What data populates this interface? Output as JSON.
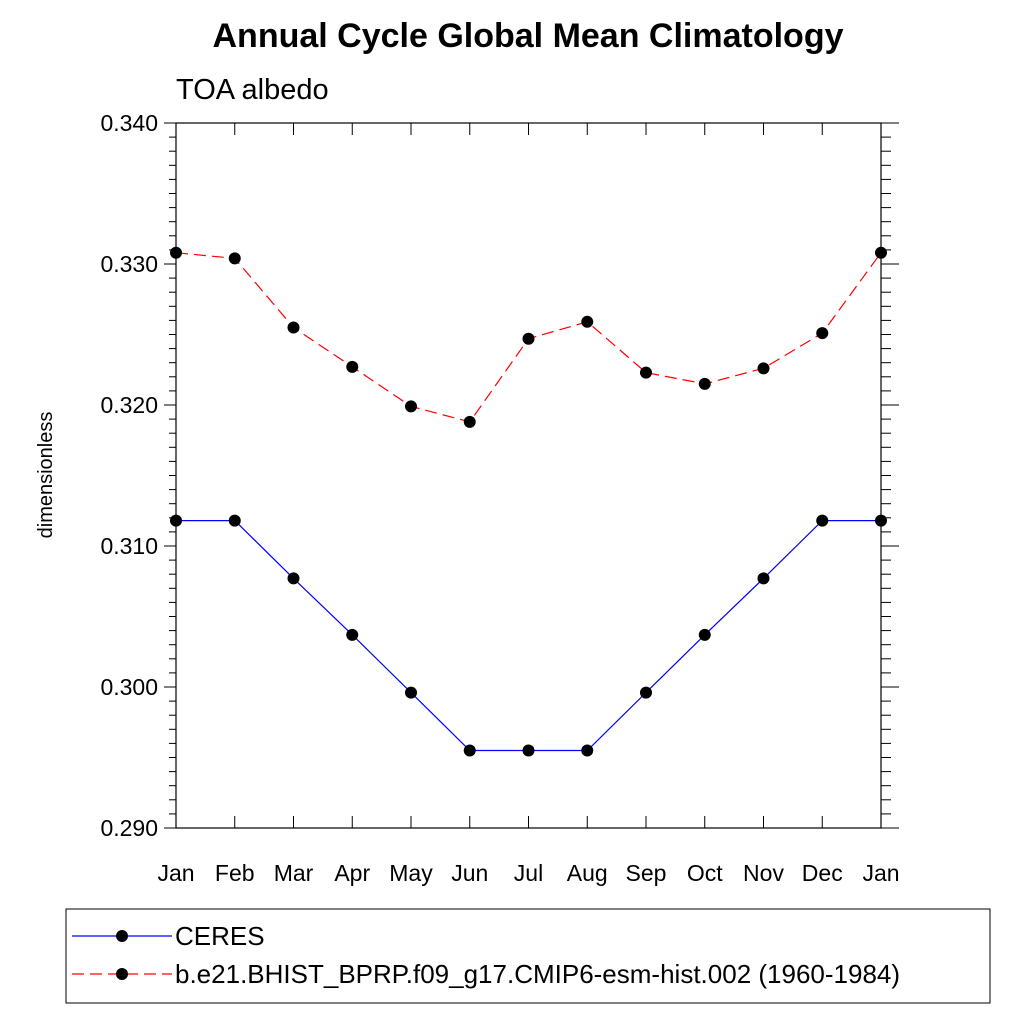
{
  "chart_data": {
    "type": "line",
    "title": "Annual Cycle Global Mean Climatology",
    "subtitle": "TOA albedo",
    "xlabel": "",
    "ylabel": "dimensionless",
    "categories": [
      "Jan",
      "Feb",
      "Mar",
      "Apr",
      "May",
      "Jun",
      "Jul",
      "Aug",
      "Sep",
      "Oct",
      "Nov",
      "Dec",
      "Jan"
    ],
    "ylim": [
      0.29,
      0.34
    ],
    "yticks": [
      "0.290",
      "0.300",
      "0.310",
      "0.320",
      "0.330",
      "0.340"
    ],
    "grid": false,
    "legend_position": "bottom",
    "series": [
      {
        "name": "CERES",
        "color": "#0000ff",
        "line_style": "solid",
        "marker": "filled-circle",
        "values": [
          0.3118,
          0.3118,
          0.3077,
          0.3037,
          0.2996,
          0.2955,
          0.2955,
          0.2955,
          0.2996,
          0.3037,
          0.3077,
          0.3118,
          0.3118
        ]
      },
      {
        "name": "b.e21.BHIST_BPRP.f09_g17.CMIP6-esm-hist.002 (1960-1984)",
        "color": "#ff0000",
        "line_style": "dashed",
        "marker": "filled-circle",
        "values": [
          0.3308,
          0.3304,
          0.3255,
          0.3227,
          0.3199,
          0.3188,
          0.3247,
          0.3259,
          0.3223,
          0.3215,
          0.3226,
          0.3251,
          0.3308
        ]
      }
    ]
  }
}
